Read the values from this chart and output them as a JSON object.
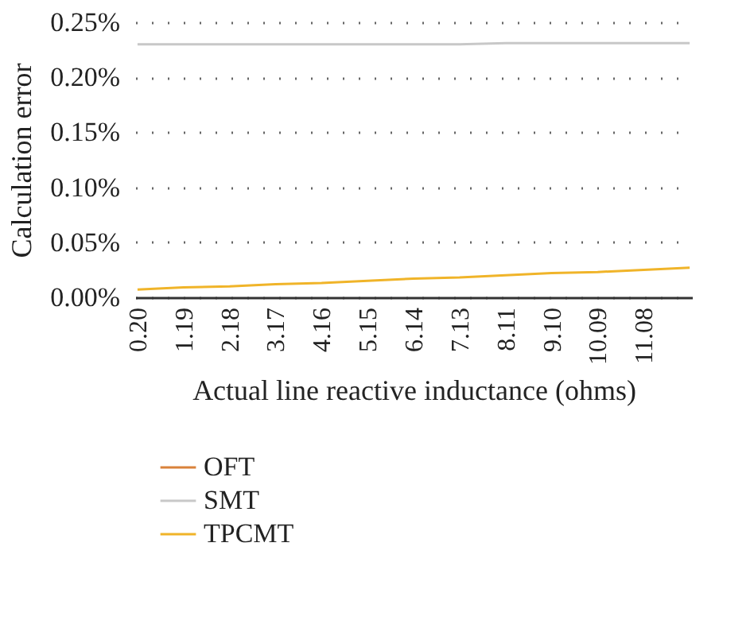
{
  "chart_data": {
    "type": "line",
    "xlabel": "Actual line reactive inductance (ohms)",
    "ylabel": "Calculation error",
    "categories": [
      "0.20",
      "1.19",
      "2.18",
      "3.17",
      "4.16",
      "5.15",
      "6.14",
      "7.13",
      "8.11",
      "9.10",
      "10.09",
      "11.08",
      null
    ],
    "series": [
      {
        "name": "OFT",
        "color": "#d9823b",
        "values": [
          null,
          null,
          null,
          null,
          null,
          null,
          null,
          null,
          null,
          null,
          null,
          null,
          null
        ]
      },
      {
        "name": "SMT",
        "color": "#c8c8c8",
        "values": [
          0.23,
          0.23,
          0.23,
          0.23,
          0.23,
          0.23,
          0.23,
          0.23,
          0.231,
          0.231,
          0.231,
          0.231,
          0.231
        ]
      },
      {
        "name": "TPCMT",
        "color": "#f0b429",
        "values": [
          0.007,
          0.009,
          0.01,
          0.012,
          0.013,
          0.015,
          0.017,
          0.018,
          0.02,
          0.022,
          0.023,
          0.025,
          0.027
        ]
      }
    ],
    "ylim": [
      0,
      0.25
    ],
    "yticks": [
      {
        "value": 0,
        "label": "0.00%"
      },
      {
        "value": 0.05,
        "label": "0.05%"
      },
      {
        "value": 0.1,
        "label": "0.10%"
      },
      {
        "value": 0.15,
        "label": "0.15%"
      },
      {
        "value": 0.2,
        "label": "0.20%"
      },
      {
        "value": 0.25,
        "label": "0.25%"
      }
    ],
    "grid": "y",
    "legend": "bottom left",
    "marker": "none",
    "line_style": "solid"
  }
}
